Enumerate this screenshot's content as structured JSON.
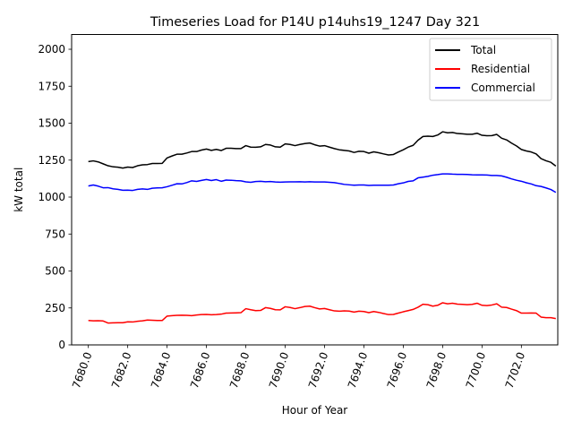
{
  "chart_data": {
    "type": "line",
    "title": "Timeseries Load for P14U p14uhs19_1247  Day 321",
    "xlabel": "Hour of Year",
    "ylabel": "kW total",
    "xlim": [
      7679.15,
      7703.85
    ],
    "ylim": [
      0,
      2100
    ],
    "yticks": [
      0,
      250,
      500,
      750,
      1000,
      1250,
      1500,
      1750,
      2000
    ],
    "ytick_labels": [
      "0",
      "250",
      "500",
      "750",
      "1000",
      "1250",
      "1500",
      "1750",
      "2000"
    ],
    "xticks": [
      7680,
      7682,
      7684,
      7686,
      7688,
      7690,
      7692,
      7694,
      7696,
      7698,
      7700,
      7702
    ],
    "xtick_labels": [
      "7680.0",
      "7682.0",
      "7684.0",
      "7686.0",
      "7688.0",
      "7690.0",
      "7692.0",
      "7694.0",
      "7696.0",
      "7698.0",
      "7700.0",
      "7702.0"
    ],
    "legend_position": "top-right",
    "x_start": 7680.0,
    "x_step": 0.25,
    "series": [
      {
        "name": "Total",
        "color": "#000000",
        "values": [
          1240,
          1245,
          1238,
          1225,
          1212,
          1205,
          1202,
          1196,
          1203,
          1200,
          1212,
          1218,
          1220,
          1227,
          1227,
          1228,
          1265,
          1278,
          1290,
          1290,
          1298,
          1308,
          1308,
          1318,
          1325,
          1316,
          1323,
          1315,
          1330,
          1330,
          1328,
          1328,
          1348,
          1338,
          1337,
          1340,
          1356,
          1352,
          1340,
          1338,
          1360,
          1356,
          1348,
          1356,
          1362,
          1366,
          1354,
          1345,
          1348,
          1338,
          1328,
          1320,
          1316,
          1312,
          1302,
          1310,
          1308,
          1297,
          1306,
          1300,
          1292,
          1285,
          1288,
          1305,
          1320,
          1338,
          1350,
          1385,
          1410,
          1412,
          1410,
          1420,
          1442,
          1435,
          1437,
          1430,
          1428,
          1425,
          1425,
          1432,
          1418,
          1415,
          1416,
          1424,
          1398,
          1387,
          1365,
          1346,
          1322,
          1312,
          1305,
          1292,
          1260,
          1246,
          1235,
          1210
        ]
      },
      {
        "name": "Residential",
        "color": "#ff0000",
        "values": [
          165,
          163,
          164,
          162,
          148,
          149,
          150,
          150,
          156,
          155,
          160,
          163,
          168,
          167,
          165,
          165,
          195,
          198,
          200,
          201,
          200,
          198,
          202,
          205,
          206,
          204,
          205,
          208,
          215,
          216,
          217,
          218,
          245,
          238,
          232,
          233,
          252,
          247,
          238,
          237,
          258,
          253,
          245,
          252,
          260,
          262,
          252,
          243,
          246,
          238,
          230,
          228,
          230,
          229,
          222,
          228,
          226,
          218,
          226,
          220,
          212,
          205,
          206,
          215,
          224,
          232,
          240,
          255,
          275,
          272,
          262,
          268,
          285,
          278,
          282,
          276,
          274,
          272,
          274,
          282,
          268,
          266,
          270,
          278,
          255,
          253,
          242,
          232,
          215,
          215,
          216,
          215,
          188,
          184,
          184,
          178
        ]
      },
      {
        "name": "Commercial",
        "color": "#0000ff",
        "values": [
          1075,
          1082,
          1074,
          1063,
          1064,
          1056,
          1052,
          1046,
          1047,
          1045,
          1052,
          1055,
          1052,
          1060,
          1062,
          1063,
          1070,
          1080,
          1090,
          1089,
          1098,
          1110,
          1106,
          1113,
          1119,
          1112,
          1118,
          1107,
          1115,
          1114,
          1111,
          1110,
          1103,
          1100,
          1105,
          1107,
          1104,
          1105,
          1102,
          1101,
          1102,
          1103,
          1103,
          1104,
          1102,
          1104,
          1102,
          1102,
          1102,
          1100,
          1098,
          1092,
          1086,
          1083,
          1080,
          1082,
          1082,
          1079,
          1080,
          1080,
          1080,
          1080,
          1082,
          1090,
          1096,
          1106,
          1110,
          1130,
          1135,
          1140,
          1148,
          1152,
          1157,
          1157,
          1155,
          1154,
          1154,
          1153,
          1151,
          1150,
          1150,
          1149,
          1146,
          1146,
          1143,
          1134,
          1123,
          1114,
          1107,
          1097,
          1089,
          1077,
          1072,
          1062,
          1051,
          1032
        ]
      }
    ]
  }
}
